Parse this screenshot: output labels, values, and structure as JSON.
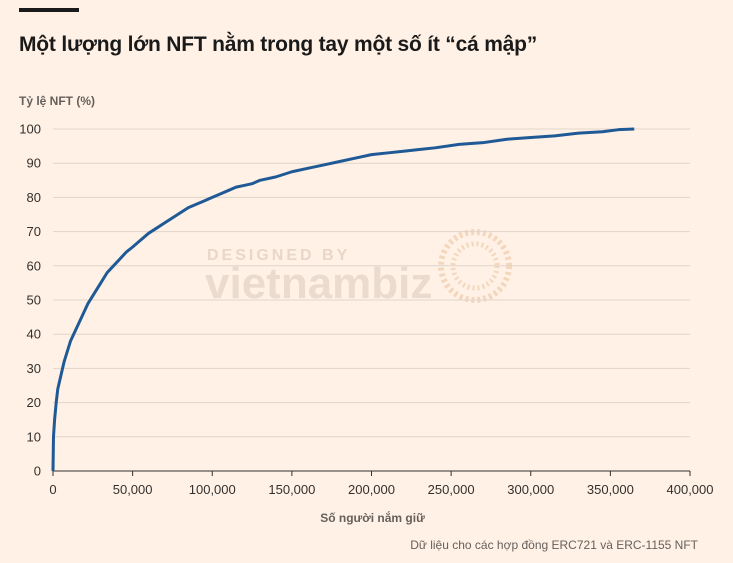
{
  "title": "Một lượng lớn NFT nằm trong tay một số ít “cá mập”",
  "source": "Dữ liệu cho các hợp đồng ERC721 và ERC-1155 NFT",
  "watermark": {
    "line1": "DESIGNED BY",
    "line2": "vietnambiz"
  },
  "colors": {
    "background": "#fff1e5",
    "line": "#1f5a96",
    "grid": "#e0d5cb",
    "text": "#33302e"
  },
  "chart_data": {
    "type": "line",
    "xlabel": "Số người nắm giữ",
    "ylabel": "Tỷ lệ NFT (%)",
    "xlim": [
      0,
      400000
    ],
    "ylim": [
      0,
      100
    ],
    "xticks": [
      0,
      50000,
      100000,
      150000,
      200000,
      250000,
      300000,
      350000,
      400000
    ],
    "xtick_labels": [
      "0",
      "50,000",
      "100,000",
      "150,000",
      "200,000",
      "250,000",
      "300,000",
      "350,000",
      "400,000"
    ],
    "yticks": [
      0,
      10,
      20,
      30,
      40,
      50,
      60,
      70,
      80,
      90,
      100
    ],
    "ytick_labels": [
      "0",
      "10",
      "20",
      "30",
      "40",
      "50",
      "60",
      "70",
      "80",
      "90",
      "100"
    ],
    "grid": true,
    "series": [
      {
        "x": [
          0,
          300,
          1000,
          2000,
          3000,
          5000,
          7000,
          9000,
          11000,
          14000,
          18000,
          22000,
          26000,
          30000,
          34000,
          38000,
          42000,
          46000,
          50000,
          55000,
          60000,
          65000,
          70000,
          75000,
          80000,
          85000,
          90000,
          95000,
          100000,
          105000,
          110000,
          115000,
          120000,
          125000,
          130000,
          140000,
          150000,
          160000,
          170000,
          180000,
          190000,
          200000,
          210000,
          220000,
          230000,
          240000,
          255000,
          270000,
          285000,
          300000,
          315000,
          330000,
          345000,
          355000,
          365000
        ],
        "y": [
          0,
          10,
          15,
          20,
          24,
          28,
          32,
          35,
          38,
          41,
          45,
          49,
          52,
          55,
          58,
          60,
          62,
          64,
          65.5,
          67.5,
          69.5,
          71,
          72.5,
          74,
          75.5,
          77,
          78,
          79,
          80,
          81,
          82,
          83,
          83.5,
          84,
          85,
          86,
          87.5,
          88.5,
          89.5,
          90.5,
          91.5,
          92.5,
          93,
          93.5,
          94,
          94.5,
          95.5,
          96,
          97,
          97.5,
          98,
          98.8,
          99.2,
          99.8,
          100
        ]
      }
    ]
  }
}
